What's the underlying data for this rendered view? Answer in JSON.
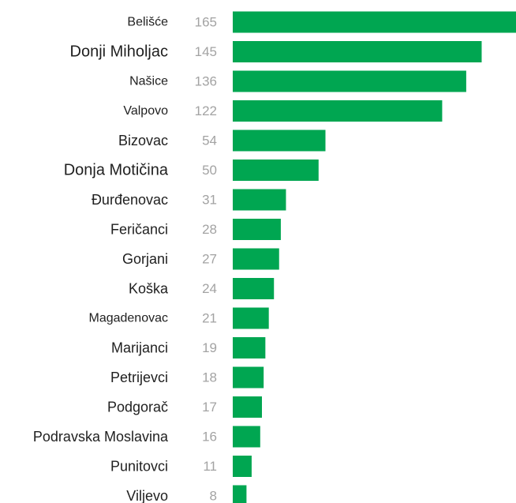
{
  "chart_data": {
    "type": "bar",
    "orientation": "horizontal",
    "title": "",
    "xlabel": "",
    "ylabel": "",
    "categories": [
      "Belišće",
      "Donji Miholjac",
      "Našice",
      "Valpovo",
      "Bizovac",
      "Donja Motičina",
      "Đurđenovac",
      "Feričanci",
      "Gorjani",
      "Koška",
      "Magadenovac",
      "Marijanci",
      "Petrijevci",
      "Podgorač",
      "Podravska Moslavina",
      "Punitovci",
      "Viljevo"
    ],
    "values": [
      165,
      145,
      136,
      122,
      54,
      50,
      31,
      28,
      27,
      24,
      21,
      19,
      18,
      17,
      16,
      11,
      8
    ],
    "xlim": [
      0,
      165
    ],
    "grid": false,
    "legend": "none",
    "bar_color": "#00a651",
    "label_color": "#1f1f1f",
    "value_color": "#a3a3a3"
  }
}
